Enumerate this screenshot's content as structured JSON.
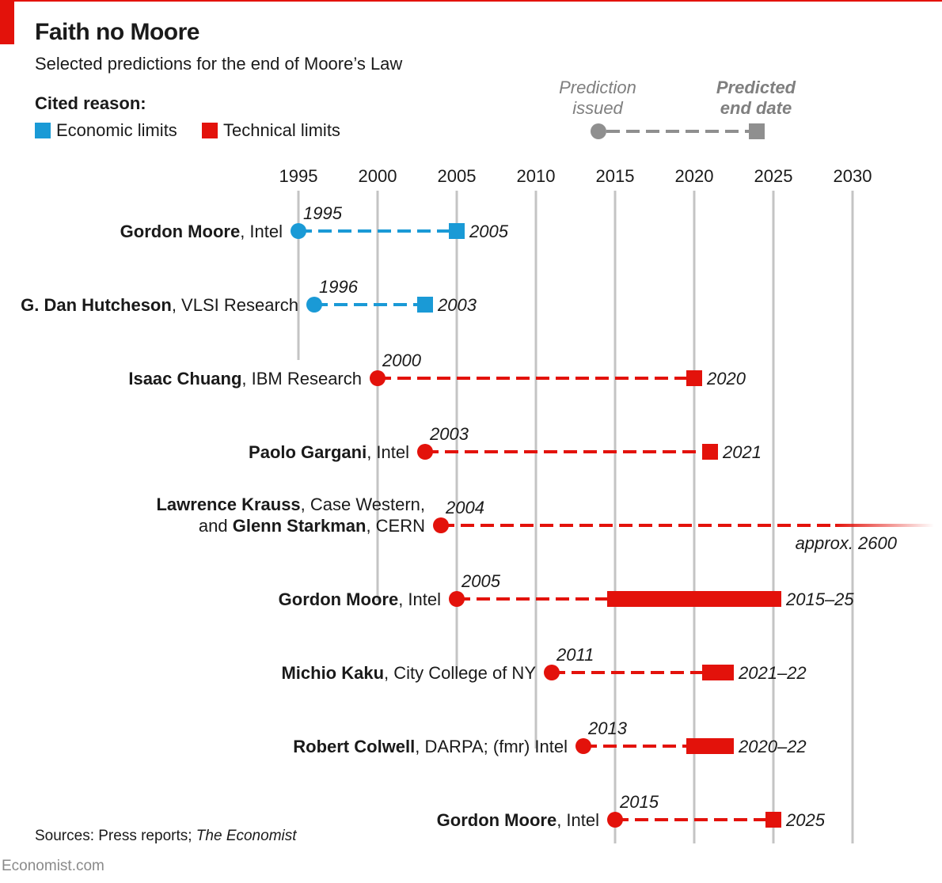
{
  "header": {
    "title": "Faith no Moore",
    "subtitle": "Selected predictions for the end of Moore’s Law"
  },
  "legend": {
    "title": "Cited reason:",
    "economic_label": "Economic limits",
    "technical_label": "Technical limits"
  },
  "key": {
    "issued_line1": "Prediction",
    "issued_line2": "issued",
    "end_line1": "Predicted",
    "end_line2": "end date"
  },
  "colors": {
    "economic": "#1a9ad6",
    "technical": "#e3120b",
    "gridline": "#c4c4c4",
    "key": "#8f8f8f"
  },
  "chart_data": {
    "type": "range",
    "x_ticks": [
      1995,
      2000,
      2005,
      2010,
      2015,
      2020,
      2025,
      2030
    ],
    "predictions": [
      {
        "name_bold": "Gordon Moore",
        "affiliation": ", Intel",
        "issued": 1995,
        "issued_label": "1995",
        "end_start": 2005,
        "end_end": 2005,
        "end_label": "2005",
        "reason": "economic"
      },
      {
        "name_bold": "G. Dan Hutcheson",
        "affiliation": ", VLSI Research",
        "issued": 1996,
        "issued_label": "1996",
        "end_start": 2003,
        "end_end": 2003,
        "end_label": "2003",
        "reason": "economic"
      },
      {
        "name_bold": "Isaac Chuang",
        "affiliation": ", IBM Research",
        "issued": 2000,
        "issued_label": "2000",
        "end_start": 2020,
        "end_end": 2020,
        "end_label": "2020",
        "reason": "technical"
      },
      {
        "name_bold": "Paolo Gargani",
        "affiliation": ", Intel",
        "issued": 2003,
        "issued_label": "2003",
        "end_start": 2021,
        "end_end": 2021,
        "end_label": "2021",
        "reason": "technical"
      },
      {
        "name_bold": "Lawrence Krauss",
        "affiliation": ", Case Western,",
        "name_bold_2": "Glenn Starkman",
        "affiliation_2_prefix": "and ",
        "affiliation_2": ", CERN",
        "issued": 2004,
        "issued_label": "2004",
        "end_start": 2600,
        "end_end": 2600,
        "end_label": "approx. 2600",
        "reason": "technical"
      },
      {
        "name_bold": "Gordon Moore",
        "affiliation": ", Intel",
        "issued": 2005,
        "issued_label": "2005",
        "end_start": 2015,
        "end_end": 2025,
        "end_label": "2015–25",
        "reason": "technical"
      },
      {
        "name_bold": "Michio Kaku",
        "affiliation": ", City College of NY",
        "issued": 2011,
        "issued_label": "2011",
        "end_start": 2021,
        "end_end": 2022,
        "end_label": "2021–22",
        "reason": "technical"
      },
      {
        "name_bold": "Robert Colwell",
        "affiliation": ", DARPA; (fmr) Intel",
        "issued": 2013,
        "issued_label": "2013",
        "end_start": 2020,
        "end_end": 2022,
        "end_label": "2020–22",
        "reason": "technical"
      },
      {
        "name_bold": "Gordon Moore",
        "affiliation": ", Intel",
        "issued": 2015,
        "issued_label": "2015",
        "end_start": 2025,
        "end_end": 2025,
        "end_label": "2025",
        "reason": "technical"
      }
    ]
  },
  "source": {
    "prefix": "Sources: Press reports; ",
    "italic": "The Economist"
  },
  "footer": {
    "text": "Economist.com"
  }
}
